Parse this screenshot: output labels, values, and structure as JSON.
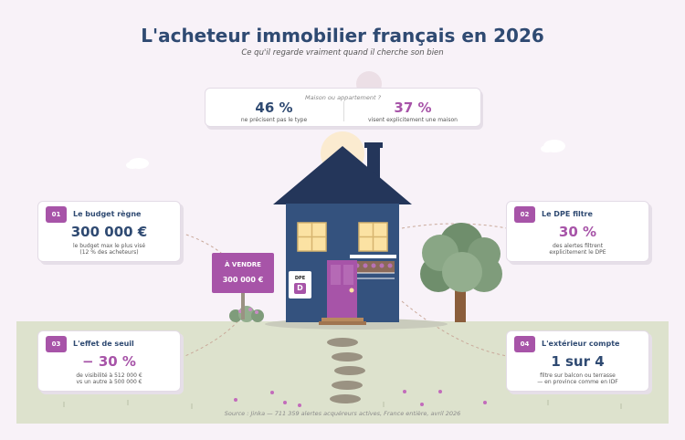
{
  "header": {
    "title": "L'acheteur immobilier français en 2026",
    "subtitle": "Ce qu'il regarde vraiment quand il cherche son bien"
  },
  "top_card": {
    "question": "Maison ou appartement ?",
    "left": {
      "value": "46 %",
      "label": "ne précisent pas le type"
    },
    "right": {
      "value": "37 %",
      "label": "visent explicitement une maison"
    }
  },
  "cards": [
    {
      "number": "01",
      "heading": "Le budget règne",
      "value": "300 000 €",
      "desc_line1": "le budget max le plus visé",
      "desc_line2": "(12 % des acheteurs)"
    },
    {
      "number": "02",
      "heading": "Le DPE filtre",
      "value": "30 %",
      "desc_line1": "des alertes filtrent",
      "desc_line2": "explicitement le DPE"
    },
    {
      "number": "03",
      "heading": "L'effet de seuil",
      "value": "− 30 %",
      "desc_line1": "de visibilité à 512 000 €",
      "desc_line2": "vs un autre à 500 000 €"
    },
    {
      "number": "04",
      "heading": "L'extérieur compte",
      "value": "1 sur 4",
      "desc_line1": "filtre sur balcon ou terrasse",
      "desc_line2": "— en province comme en IDF"
    }
  ],
  "sign": {
    "line1": "À VENDRE",
    "line2": "300 000 €"
  },
  "dpe_label": {
    "title": "DPE",
    "letter": "D"
  },
  "source": "Source : Jinka — 711 359 alertes acquéreurs actives, France entière, avril 2026",
  "colors": {
    "navy": "#2f4a72",
    "purple": "#a754a8",
    "house": "#34527e",
    "roof": "#24365a"
  }
}
